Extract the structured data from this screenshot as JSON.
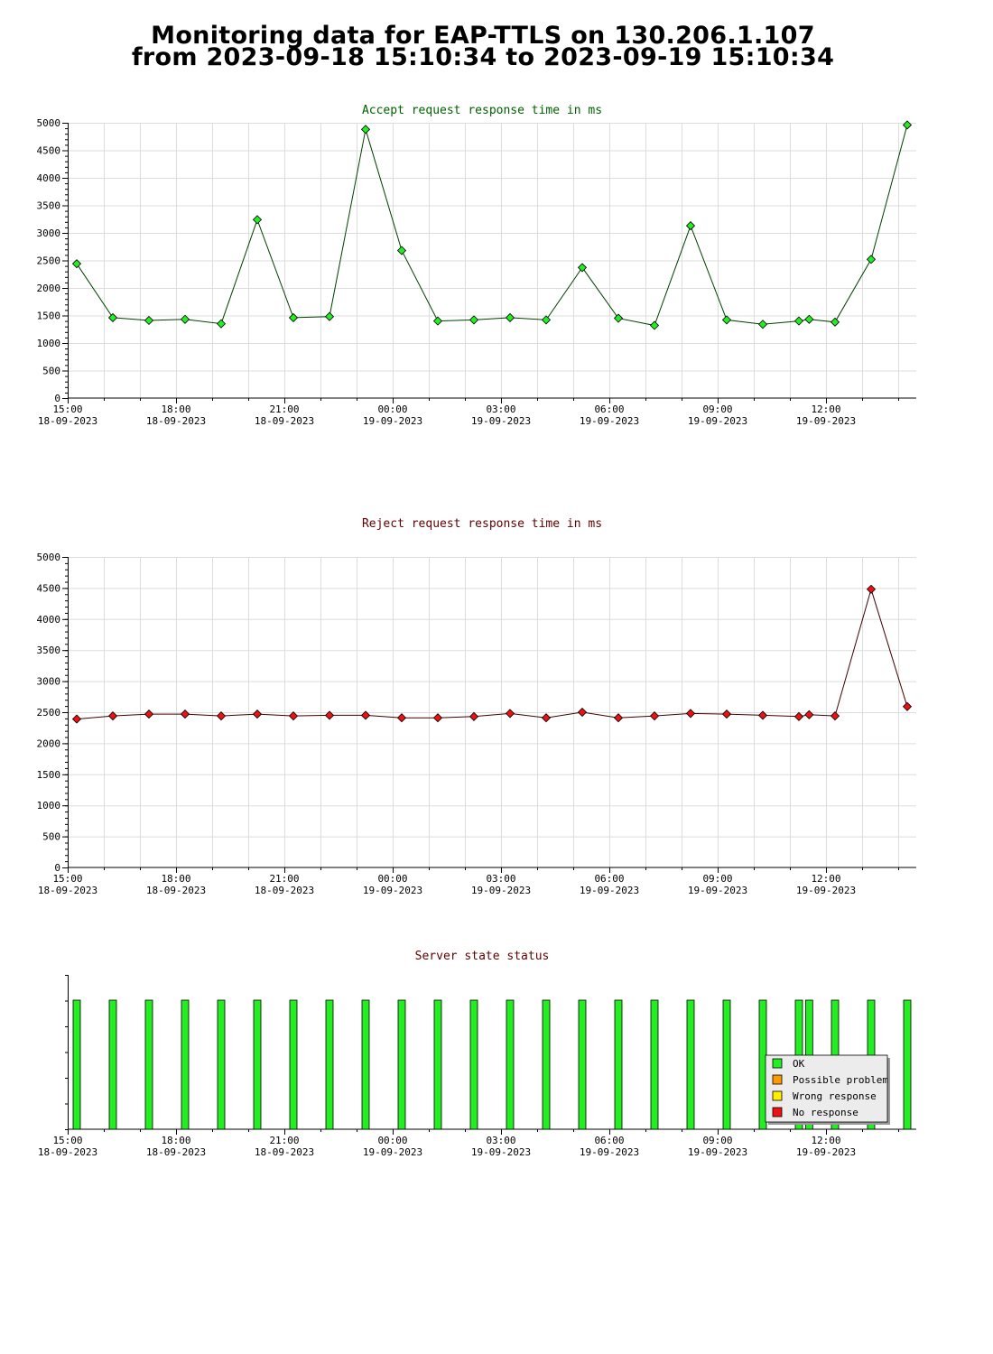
{
  "page": {
    "title_line1": "Monitoring data for EAP-TTLS on 130.206.1.107",
    "title_line2": "from 2023-09-18 15:10:34 to 2023-09-19 15:10:34"
  },
  "colors": {
    "accept_title": "#006000",
    "reject_title": "#600000",
    "status_title": "#600000",
    "accept_line": "#004000",
    "reject_line": "#400000",
    "ok_marker": "#22ee22",
    "reject_marker": "#ee1111",
    "grid": "#dddddd",
    "ok": "#22ee22",
    "possible_problem": "#ff9900",
    "wrong_response": "#ffee00",
    "no_response": "#ee1111"
  },
  "time_axis": {
    "start": "2023-09-18 15:10:34",
    "end": "2023-09-19 15:10:34",
    "ticks": [
      {
        "time": "15:00",
        "date": "18-09-2023"
      },
      {
        "time": "18:00",
        "date": "18-09-2023"
      },
      {
        "time": "21:00",
        "date": "18-09-2023"
      },
      {
        "time": "00:00",
        "date": "19-09-2023"
      },
      {
        "time": "03:00",
        "date": "19-09-2023"
      },
      {
        "time": "06:00",
        "date": "19-09-2023"
      },
      {
        "time": "09:00",
        "date": "19-09-2023"
      },
      {
        "time": "12:00",
        "date": "19-09-2023"
      }
    ]
  },
  "chart_data": [
    {
      "type": "line",
      "title": "Accept request response time in ms",
      "ylim": [
        0,
        5000
      ],
      "yticks": [
        0,
        500,
        1000,
        1500,
        2000,
        2500,
        3000,
        3500,
        4000,
        4500,
        5000
      ],
      "grid": true,
      "series": [
        {
          "x": [
            "2023-09-18 15:15",
            "2023-09-18 16:15",
            "2023-09-18 17:15",
            "2023-09-18 18:15",
            "2023-09-18 19:15",
            "2023-09-18 20:15",
            "2023-09-18 21:15",
            "2023-09-18 22:15",
            "2023-09-18 23:15",
            "2023-09-19 00:15",
            "2023-09-19 01:15",
            "2023-09-19 02:15",
            "2023-09-19 03:15",
            "2023-09-19 04:15",
            "2023-09-19 05:15",
            "2023-09-19 06:15",
            "2023-09-19 07:15",
            "2023-09-19 08:15",
            "2023-09-19 09:15",
            "2023-09-19 10:15",
            "2023-09-19 11:15",
            "2023-09-19 11:32",
            "2023-09-19 12:15",
            "2023-09-19 13:15",
            "2023-09-19 14:15"
          ],
          "values": [
            2440,
            1460,
            1410,
            1430,
            1350,
            3240,
            1460,
            1480,
            4880,
            2680,
            1400,
            1420,
            1460,
            1420,
            2370,
            1450,
            1320,
            3130,
            1420,
            1340,
            1400,
            1430,
            1380,
            2520,
            4960
          ]
        }
      ]
    },
    {
      "type": "line",
      "title": "Reject request response time in ms",
      "ylim": [
        0,
        5000
      ],
      "yticks": [
        0,
        500,
        1000,
        1500,
        2000,
        2500,
        3000,
        3500,
        4000,
        4500,
        5000
      ],
      "grid": true,
      "series": [
        {
          "x": [
            "2023-09-18 15:15",
            "2023-09-18 16:15",
            "2023-09-18 17:15",
            "2023-09-18 18:15",
            "2023-09-18 19:15",
            "2023-09-18 20:15",
            "2023-09-18 21:15",
            "2023-09-18 22:15",
            "2023-09-18 23:15",
            "2023-09-19 00:15",
            "2023-09-19 01:15",
            "2023-09-19 02:15",
            "2023-09-19 03:15",
            "2023-09-19 04:15",
            "2023-09-19 05:15",
            "2023-09-19 06:15",
            "2023-09-19 07:15",
            "2023-09-19 08:15",
            "2023-09-19 09:15",
            "2023-09-19 10:15",
            "2023-09-19 11:15",
            "2023-09-19 11:32",
            "2023-09-19 12:15",
            "2023-09-19 13:15",
            "2023-09-19 14:15"
          ],
          "values": [
            2390,
            2440,
            2470,
            2470,
            2440,
            2470,
            2440,
            2450,
            2450,
            2410,
            2410,
            2430,
            2480,
            2410,
            2500,
            2410,
            2440,
            2480,
            2470,
            2450,
            2430,
            2460,
            2440,
            4480,
            2590
          ]
        }
      ]
    },
    {
      "type": "bar",
      "title": "Server state status",
      "grid": false,
      "legend": {
        "placement": "bottom-right",
        "entries": [
          "OK",
          "Possible problem",
          "Wrong response",
          "No response"
        ]
      },
      "series": [
        {
          "name": "OK",
          "x": [
            "2023-09-18 15:15",
            "2023-09-18 16:15",
            "2023-09-18 17:15",
            "2023-09-18 18:15",
            "2023-09-18 19:15",
            "2023-09-18 20:15",
            "2023-09-18 21:15",
            "2023-09-18 22:15",
            "2023-09-18 23:15",
            "2023-09-19 00:15",
            "2023-09-19 01:15",
            "2023-09-19 02:15",
            "2023-09-19 03:15",
            "2023-09-19 04:15",
            "2023-09-19 05:15",
            "2023-09-19 06:15",
            "2023-09-19 07:15",
            "2023-09-19 08:15",
            "2023-09-19 09:15",
            "2023-09-19 10:15",
            "2023-09-19 11:15",
            "2023-09-19 11:32",
            "2023-09-19 12:15",
            "2023-09-19 13:15",
            "2023-09-19 14:15"
          ],
          "values": [
            1,
            1,
            1,
            1,
            1,
            1,
            1,
            1,
            1,
            1,
            1,
            1,
            1,
            1,
            1,
            1,
            1,
            1,
            1,
            1,
            1,
            1,
            1,
            1,
            1
          ]
        }
      ]
    }
  ]
}
